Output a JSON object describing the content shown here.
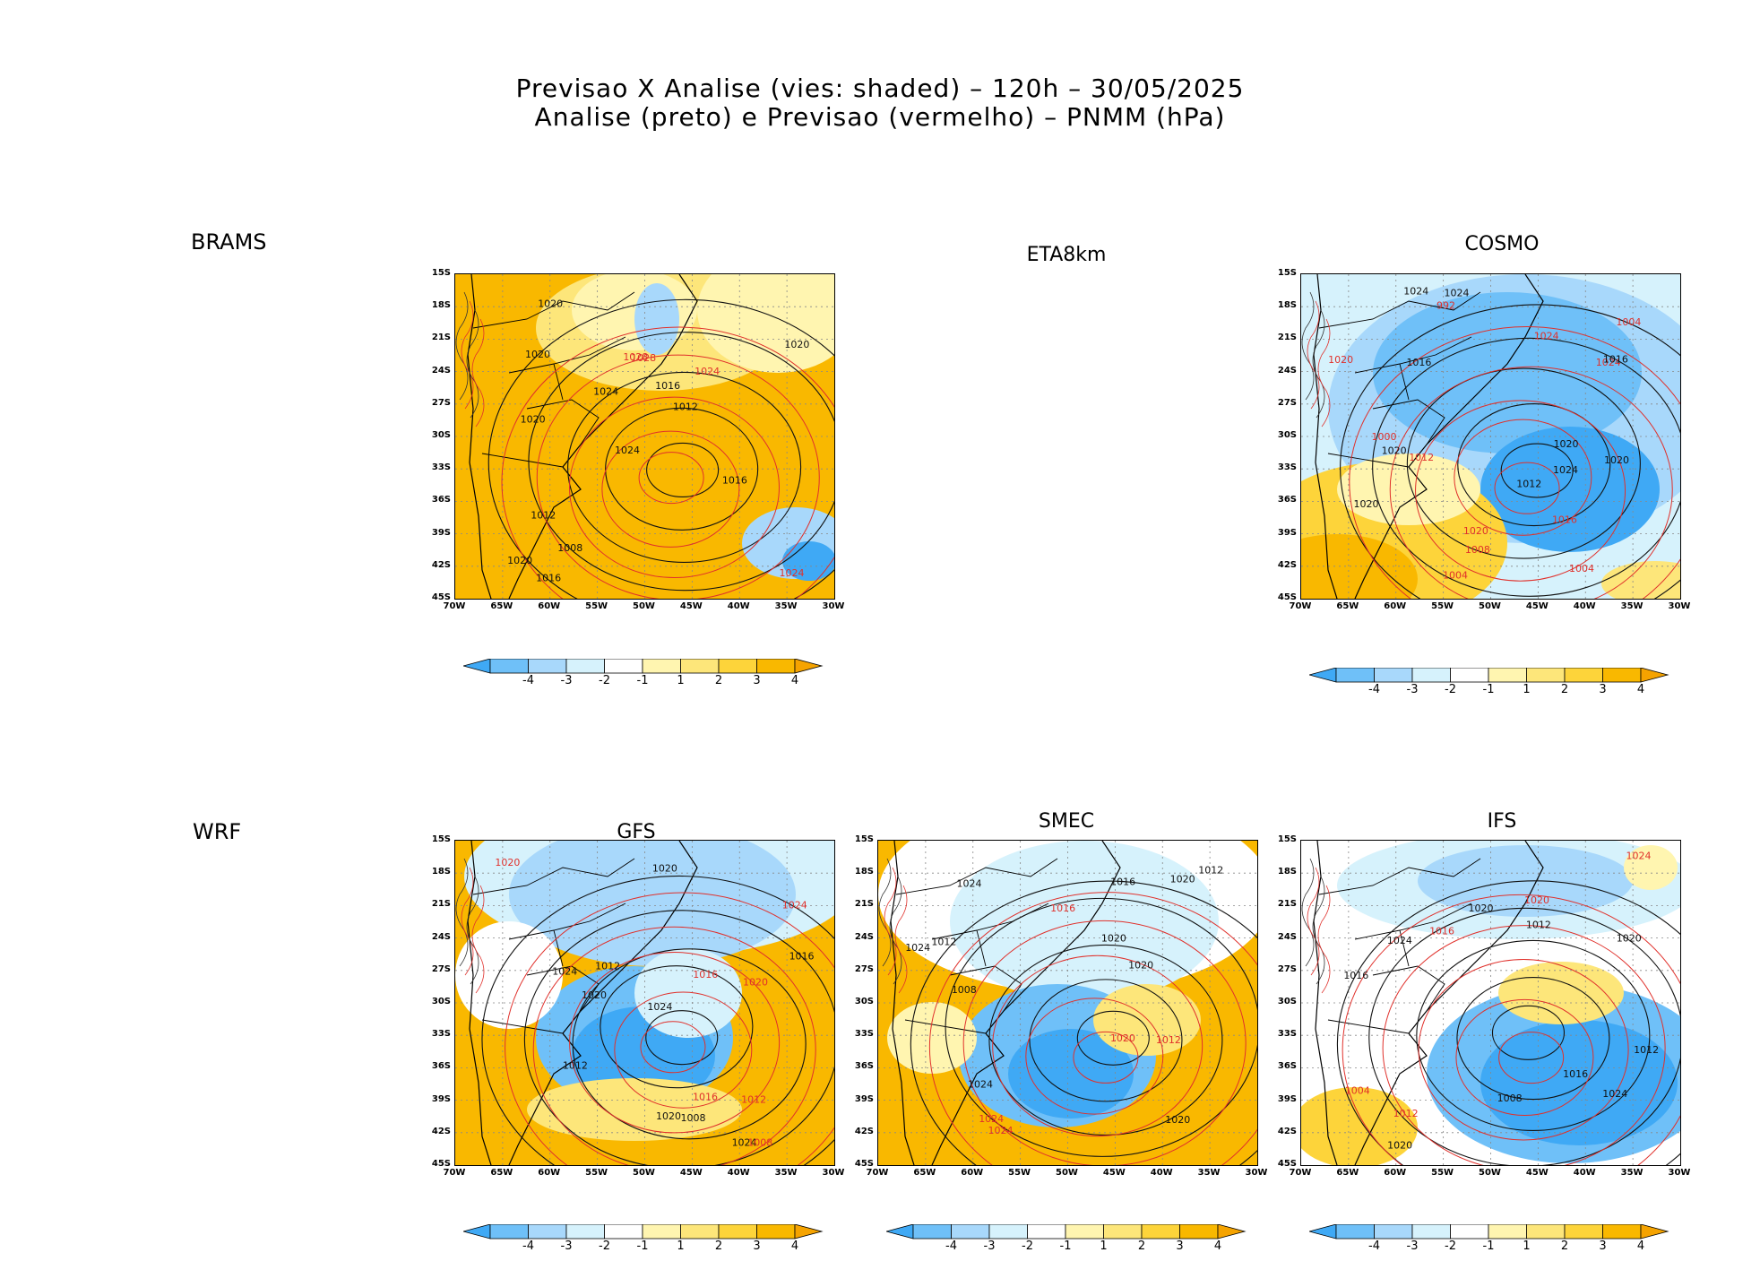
{
  "title": {
    "line1": "Previsao X Analise (vies: shaded) – 120h – 30/05/2025",
    "line2": "Analise (preto) e Previsao (vermelho) – PNMM (hPa)"
  },
  "row_labels": {
    "top": "BRAMS",
    "bottom": "WRF"
  },
  "panels": [
    {
      "id": "brams",
      "title": "",
      "theme": "warm",
      "labels": [
        {
          "t": "1020",
          "c": "k"
        },
        {
          "t": "1024",
          "c": "r"
        },
        {
          "t": "1020",
          "c": "k"
        },
        {
          "t": "1020",
          "c": "k"
        },
        {
          "t": "1024",
          "c": "k"
        },
        {
          "t": "1024",
          "c": "r"
        },
        {
          "t": "1016",
          "c": "k"
        },
        {
          "t": "1028",
          "c": "r"
        },
        {
          "t": "1016",
          "c": "k"
        },
        {
          "t": "1012",
          "c": "k"
        },
        {
          "t": "1024",
          "c": "k"
        },
        {
          "t": "1020",
          "c": "k"
        },
        {
          "t": "1008",
          "c": "k"
        },
        {
          "t": "1028",
          "c": "r"
        },
        {
          "t": "1012",
          "c": "k"
        },
        {
          "t": "1016",
          "c": "k"
        },
        {
          "t": "1020",
          "c": "k"
        }
      ]
    },
    {
      "id": "eta8km",
      "title": "ETA8km",
      "theme": "none",
      "labels": []
    },
    {
      "id": "cosmo",
      "title": "COSMO",
      "theme": "cool",
      "labels": [
        {
          "t": "1020",
          "c": "r"
        },
        {
          "t": "1024",
          "c": "k"
        },
        {
          "t": "1020",
          "c": "k"
        },
        {
          "t": "1020",
          "c": "k"
        },
        {
          "t": "1024",
          "c": "k"
        },
        {
          "t": "1020",
          "c": "k"
        },
        {
          "t": "1024",
          "c": "r"
        },
        {
          "t": "1016",
          "c": "r"
        },
        {
          "t": "1016",
          "c": "k"
        },
        {
          "t": "1012",
          "c": "r"
        },
        {
          "t": "1012",
          "c": "k"
        },
        {
          "t": "1024",
          "c": "r"
        },
        {
          "t": "1008",
          "c": "r"
        },
        {
          "t": "1004",
          "c": "r"
        },
        {
          "t": "1024",
          "c": "k"
        },
        {
          "t": "1020",
          "c": "k"
        },
        {
          "t": "992",
          "c": "r"
        },
        {
          "t": "1004",
          "c": "r"
        },
        {
          "t": "1020",
          "c": "r"
        },
        {
          "t": "1016",
          "c": "k"
        },
        {
          "t": "1000",
          "c": "r"
        },
        {
          "t": "1004",
          "c": "r"
        }
      ]
    },
    {
      "id": "gfs",
      "title": "GFS",
      "theme": "mixed",
      "labels": [
        {
          "t": "1020",
          "c": "r"
        },
        {
          "t": "1020",
          "c": "k"
        },
        {
          "t": "1020",
          "c": "r"
        },
        {
          "t": "1024",
          "c": "k"
        },
        {
          "t": "1020",
          "c": "k"
        },
        {
          "t": "1016",
          "c": "r"
        },
        {
          "t": "1024",
          "c": "k"
        },
        {
          "t": "1016",
          "c": "k"
        },
        {
          "t": "1024",
          "c": "r"
        },
        {
          "t": "1012",
          "c": "k"
        },
        {
          "t": "1008",
          "c": "r"
        },
        {
          "t": "1024",
          "c": "k"
        },
        {
          "t": "1008",
          "c": "k"
        },
        {
          "t": "1012",
          "c": "k"
        },
        {
          "t": "1012",
          "c": "r"
        },
        {
          "t": "1016",
          "c": "r"
        },
        {
          "t": "1020",
          "c": "k"
        }
      ]
    },
    {
      "id": "smec",
      "title": "SMEC",
      "theme": "mixed2",
      "labels": [
        {
          "t": "1020",
          "c": "r"
        },
        {
          "t": "1020",
          "c": "k"
        },
        {
          "t": "1024",
          "c": "k"
        },
        {
          "t": "1020",
          "c": "k"
        },
        {
          "t": "1024",
          "c": "r"
        },
        {
          "t": "1024",
          "c": "k"
        },
        {
          "t": "1024",
          "c": "k"
        },
        {
          "t": "1024",
          "c": "r"
        },
        {
          "t": "1016",
          "c": "k"
        },
        {
          "t": "1016",
          "c": "r"
        },
        {
          "t": "1012",
          "c": "k"
        },
        {
          "t": "1012",
          "c": "r"
        },
        {
          "t": "1020",
          "c": "k"
        },
        {
          "t": "1008",
          "c": "k"
        },
        {
          "t": "1012",
          "c": "k"
        },
        {
          "t": "1020",
          "c": "k"
        }
      ]
    },
    {
      "id": "ifs",
      "title": "IFS",
      "theme": "cool2",
      "labels": [
        {
          "t": "1020",
          "c": "k"
        },
        {
          "t": "1024",
          "c": "k"
        },
        {
          "t": "1020",
          "c": "r"
        },
        {
          "t": "1024",
          "c": "r"
        },
        {
          "t": "1024",
          "c": "k"
        },
        {
          "t": "1016",
          "c": "k"
        },
        {
          "t": "1016",
          "c": "r"
        },
        {
          "t": "1012",
          "c": "r"
        },
        {
          "t": "1012",
          "c": "k"
        },
        {
          "t": "1020",
          "c": "k"
        },
        {
          "t": "1008",
          "c": "k"
        },
        {
          "t": "1012",
          "c": "k"
        },
        {
          "t": "1016",
          "c": "k"
        },
        {
          "t": "1020",
          "c": "k"
        },
        {
          "t": "1004",
          "c": "r"
        }
      ]
    }
  ],
  "axes": {
    "lat": [
      "15S",
      "18S",
      "21S",
      "24S",
      "27S",
      "30S",
      "33S",
      "36S",
      "39S",
      "42S",
      "45S"
    ],
    "lon": [
      "70W",
      "65W",
      "60W",
      "55W",
      "50W",
      "45W",
      "40W",
      "35W",
      "30W"
    ]
  },
  "colorbar": {
    "ticks": [
      "-4",
      "-3",
      "-2",
      "-1",
      "1",
      "2",
      "3",
      "4"
    ],
    "colors": [
      "#3fa9f5",
      "#6fc0f8",
      "#a8d8fb",
      "#d6f2fc",
      "#ffffff",
      "#fff5b0",
      "#fde67a",
      "#fdd43a",
      "#f9b800",
      "#f5a300"
    ]
  }
}
